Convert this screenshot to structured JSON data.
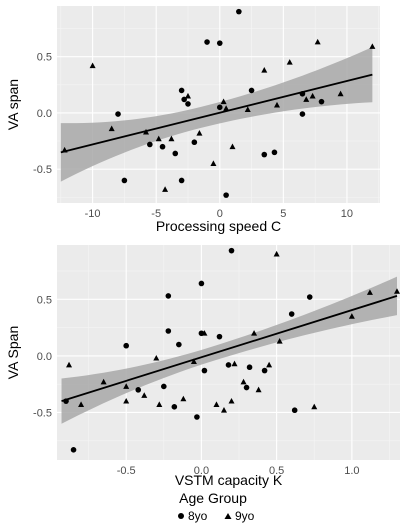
{
  "chart_data": [
    {
      "type": "scatter",
      "xlabel": "Processing speed C",
      "ylabel": "VA span",
      "xlim": [
        -12.8,
        12.6
      ],
      "ylim": [
        -0.8,
        0.95
      ],
      "xticks": [
        "-10",
        "-5",
        "0",
        "5",
        "10"
      ],
      "xtick_values": [
        -10,
        -5,
        0,
        5,
        10
      ],
      "yticks": [
        "0.5",
        "0.0",
        "-0.5"
      ],
      "ytick_values": [
        0.5,
        0,
        -0.5
      ],
      "grid": true,
      "fit": {
        "x": [
          -12.5,
          12.0
        ],
        "y": [
          -0.35,
          0.34
        ],
        "band_lower": [
          -0.61,
          0.09
        ],
        "band_upper": [
          -0.09,
          0.58
        ]
      },
      "series": [
        {
          "name": "8yo",
          "marker": "circle",
          "points": [
            [
              -8,
              -0.01
            ],
            [
              -7.5,
              -0.6
            ],
            [
              -4.5,
              -0.3
            ],
            [
              -3.5,
              -0.36
            ],
            [
              -3,
              0.2
            ],
            [
              -3,
              -0.6
            ],
            [
              -2.5,
              0.08
            ],
            [
              -2,
              -0.26
            ],
            [
              -1,
              0.63
            ],
            [
              0,
              0.05
            ],
            [
              0,
              0.62
            ],
            [
              0.5,
              -0.73
            ],
            [
              1.5,
              0.9
            ],
            [
              2.5,
              0.2
            ],
            [
              3.5,
              -0.37
            ],
            [
              6.5,
              0.17
            ],
            [
              6.5,
              -0.01
            ],
            [
              8,
              0.1
            ],
            [
              -5.5,
              -0.28
            ],
            [
              -2.8,
              0.12
            ],
            [
              4.3,
              -0.35
            ]
          ]
        },
        {
          "name": "9yo",
          "marker": "triangle",
          "points": [
            [
              -12.2,
              -0.33
            ],
            [
              -10,
              0.42
            ],
            [
              -8.5,
              -0.14
            ],
            [
              -5.8,
              -0.17
            ],
            [
              -4.8,
              -0.23
            ],
            [
              -4.3,
              -0.68
            ],
            [
              -3.8,
              -0.23
            ],
            [
              -2.5,
              0.15
            ],
            [
              -0.5,
              -0.45
            ],
            [
              0.3,
              0.1
            ],
            [
              1,
              -0.3
            ],
            [
              2.2,
              0.03
            ],
            [
              3.5,
              0.38
            ],
            [
              4.5,
              0.07
            ],
            [
              5.5,
              0.45
            ],
            [
              6.8,
              0.12
            ],
            [
              7.3,
              0.15
            ],
            [
              7.7,
              0.63
            ],
            [
              9.5,
              0.17
            ],
            [
              12,
              0.59
            ],
            [
              0.5,
              0.04
            ],
            [
              -1.6,
              -0.18
            ]
          ]
        }
      ]
    },
    {
      "type": "scatter",
      "xlabel": "VSTM capacity K",
      "ylabel": "VA Span",
      "xlim": [
        -0.96,
        1.32
      ],
      "ylim": [
        -0.92,
        0.98
      ],
      "xticks": [
        "-0.5",
        "0.0",
        "0.5",
        "1.0"
      ],
      "xtick_values": [
        -0.5,
        0,
        0.5,
        1
      ],
      "yticks": [
        "0.5",
        "0.0",
        "-0.5"
      ],
      "ytick_values": [
        0.5,
        0,
        -0.5
      ],
      "grid": true,
      "fit": {
        "x": [
          -0.93,
          1.3
        ],
        "y": [
          -0.4,
          0.53
        ],
        "band_lower": [
          -0.6,
          0.36
        ],
        "band_upper": [
          -0.2,
          0.7
        ]
      },
      "series": [
        {
          "name": "8yo",
          "marker": "circle",
          "points": [
            [
              -0.9,
              -0.4
            ],
            [
              -0.85,
              -0.83
            ],
            [
              -0.5,
              0.09
            ],
            [
              -0.42,
              -0.3
            ],
            [
              -0.25,
              -0.27
            ],
            [
              -0.22,
              0.22
            ],
            [
              -0.22,
              0.53
            ],
            [
              -0.18,
              -0.45
            ],
            [
              -0.15,
              0.1
            ],
            [
              -0.03,
              -0.54
            ],
            [
              0,
              0.64
            ],
            [
              0,
              0.2
            ],
            [
              0.02,
              -0.13
            ],
            [
              0.12,
              0.17
            ],
            [
              0.18,
              -0.08
            ],
            [
              0.2,
              0.93
            ],
            [
              0.3,
              -0.28
            ],
            [
              0.32,
              -0.1
            ],
            [
              0.42,
              -0.13
            ],
            [
              0.6,
              0.37
            ],
            [
              0.62,
              -0.48
            ],
            [
              0.72,
              0.52
            ]
          ]
        },
        {
          "name": "9yo",
          "marker": "triangle",
          "points": [
            [
              -0.88,
              -0.08
            ],
            [
              -0.8,
              -0.43
            ],
            [
              -0.65,
              -0.23
            ],
            [
              -0.5,
              -0.27
            ],
            [
              -0.5,
              -0.4
            ],
            [
              -0.38,
              -0.35
            ],
            [
              -0.3,
              -0.02
            ],
            [
              -0.28,
              -0.43
            ],
            [
              -0.12,
              -0.38
            ],
            [
              -0.05,
              -0.05
            ],
            [
              0.02,
              0.2
            ],
            [
              0.1,
              -0.43
            ],
            [
              0.15,
              -0.48
            ],
            [
              0.2,
              -0.4
            ],
            [
              0.22,
              -0.07
            ],
            [
              0.28,
              -0.23
            ],
            [
              0.35,
              0.2
            ],
            [
              0.45,
              -0.08
            ],
            [
              0.5,
              0.9
            ],
            [
              0.52,
              0.13
            ],
            [
              0.75,
              -0.45
            ],
            [
              1.0,
              0.35
            ],
            [
              1.12,
              0.56
            ],
            [
              1.3,
              0.57
            ],
            [
              0.38,
              -0.3
            ]
          ]
        }
      ]
    }
  ],
  "legend": {
    "title": "Age Group",
    "items": [
      {
        "label": "8yo",
        "marker": "circle"
      },
      {
        "label": "9yo",
        "marker": "triangle"
      }
    ]
  },
  "colors": {
    "panel_background": "#ebebeb",
    "grid_major": "#ffffff",
    "grid_minor": "#f5f5f5",
    "confidence_band": "#a8a8a8",
    "points": "#000000",
    "fit_line": "#000000"
  }
}
